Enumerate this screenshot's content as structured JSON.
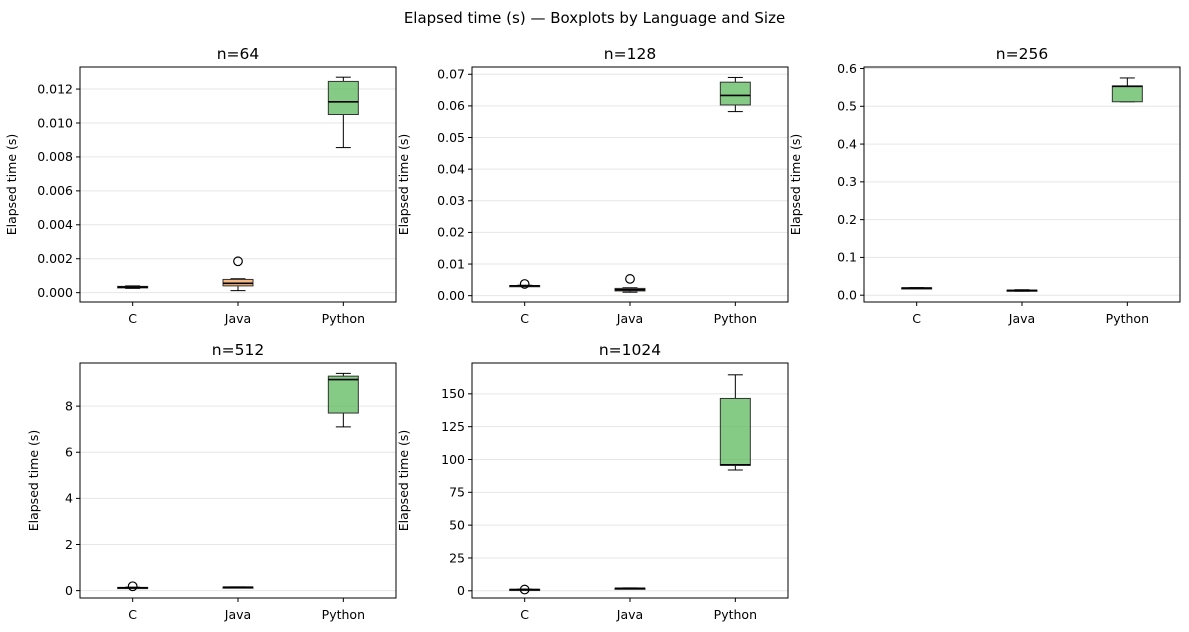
{
  "figure": {
    "title": "Elapsed time (s) — Boxplots by Language and Size"
  },
  "colors": {
    "C": "#4c72b0",
    "Java": "#f5a05a",
    "Python": "#5cb85c",
    "grid": "#e6e6e6",
    "median": "#000000"
  },
  "chart_data": [
    {
      "type": "box",
      "title": "n=64",
      "xlabel": "",
      "ylabel": "Elapsed time (s)",
      "categories": [
        "C",
        "Java",
        "Python"
      ],
      "ylim": [
        -0.00055,
        0.0133
      ],
      "yticks": [
        0.0,
        0.002,
        0.004,
        0.006,
        0.008,
        0.01,
        0.012
      ],
      "yticklabels": [
        "0.000",
        "0.002",
        "0.004",
        "0.006",
        "0.008",
        "0.010",
        "0.012"
      ],
      "grid": "y",
      "boxes": [
        {
          "name": "C",
          "whislo": 0.00025,
          "q1": 0.00028,
          "med": 0.00033,
          "q3": 0.00037,
          "whishi": 0.0004,
          "fliers": []
        },
        {
          "name": "Java",
          "whislo": 0.00012,
          "q1": 0.0004,
          "med": 0.00055,
          "q3": 0.00078,
          "whishi": 0.00082,
          "fliers": [
            0.00185
          ]
        },
        {
          "name": "Python",
          "whislo": 0.00855,
          "q1": 0.0105,
          "med": 0.01125,
          "q3": 0.01245,
          "whishi": 0.0127,
          "fliers": []
        }
      ]
    },
    {
      "type": "box",
      "title": "n=128",
      "xlabel": "",
      "ylabel": "Elapsed time (s)",
      "categories": [
        "C",
        "Java",
        "Python"
      ],
      "ylim": [
        -0.002,
        0.0723
      ],
      "yticks": [
        0.0,
        0.01,
        0.02,
        0.03,
        0.04,
        0.05,
        0.06,
        0.07
      ],
      "yticklabels": [
        "0.00",
        "0.01",
        "0.02",
        "0.03",
        "0.04",
        "0.05",
        "0.06",
        "0.07"
      ],
      "grid": "y",
      "boxes": [
        {
          "name": "C",
          "whislo": 0.0029,
          "q1": 0.003,
          "med": 0.0031,
          "q3": 0.0032,
          "whishi": 0.0033,
          "fliers": [
            0.0037
          ]
        },
        {
          "name": "Java",
          "whislo": 0.0011,
          "q1": 0.0015,
          "med": 0.0019,
          "q3": 0.0023,
          "whishi": 0.0025,
          "fliers": [
            0.0053
          ]
        },
        {
          "name": "Python",
          "whislo": 0.0582,
          "q1": 0.0603,
          "med": 0.0633,
          "q3": 0.0675,
          "whishi": 0.069,
          "fliers": []
        }
      ]
    },
    {
      "type": "box",
      "title": "n=256",
      "xlabel": "",
      "ylabel": "Elapsed time (s)",
      "categories": [
        "C",
        "Java",
        "Python"
      ],
      "ylim": [
        -0.018,
        0.604
      ],
      "yticks": [
        0.0,
        0.1,
        0.2,
        0.3,
        0.4,
        0.5,
        0.6
      ],
      "yticklabels": [
        "0.0",
        "0.1",
        "0.2",
        "0.3",
        "0.4",
        "0.5",
        "0.6"
      ],
      "grid": "y",
      "boxes": [
        {
          "name": "C",
          "whislo": 0.0175,
          "q1": 0.0182,
          "med": 0.0188,
          "q3": 0.0195,
          "whishi": 0.02,
          "fliers": []
        },
        {
          "name": "Java",
          "whislo": 0.0105,
          "q1": 0.0115,
          "med": 0.0125,
          "q3": 0.0135,
          "whishi": 0.0145,
          "fliers": []
        },
        {
          "name": "Python",
          "whislo": 0.512,
          "q1": 0.512,
          "med": 0.553,
          "q3": 0.554,
          "whishi": 0.575,
          "fliers": []
        }
      ]
    },
    {
      "type": "box",
      "title": "n=512",
      "xlabel": "",
      "ylabel": "Elapsed time (s)",
      "categories": [
        "C",
        "Java",
        "Python"
      ],
      "ylim": [
        -0.32,
        9.87
      ],
      "yticks": [
        0,
        2,
        4,
        6,
        8
      ],
      "yticklabels": [
        "0",
        "2",
        "4",
        "6",
        "8"
      ],
      "grid": "y",
      "boxes": [
        {
          "name": "C",
          "whislo": 0.1,
          "q1": 0.11,
          "med": 0.125,
          "q3": 0.14,
          "whishi": 0.15,
          "fliers": [
            0.19
          ]
        },
        {
          "name": "Java",
          "whislo": 0.14,
          "q1": 0.145,
          "med": 0.15,
          "q3": 0.155,
          "whishi": 0.16,
          "fliers": []
        },
        {
          "name": "Python",
          "whislo": 7.1,
          "q1": 7.7,
          "med": 9.15,
          "q3": 9.3,
          "whishi": 9.42,
          "fliers": []
        }
      ]
    },
    {
      "type": "box",
      "title": "n=1024",
      "xlabel": "",
      "ylabel": "Elapsed time (s)",
      "categories": [
        "C",
        "Java",
        "Python"
      ],
      "ylim": [
        -5.5,
        173.5
      ],
      "yticks": [
        0,
        25,
        50,
        75,
        100,
        125,
        150
      ],
      "yticklabels": [
        "0",
        "25",
        "50",
        "75",
        "100",
        "125",
        "150"
      ],
      "grid": "y",
      "boxes": [
        {
          "name": "C",
          "whislo": 0.6,
          "q1": 0.8,
          "med": 0.95,
          "q3": 1.1,
          "whishi": 1.3,
          "fliers": [
            0.95
          ]
        },
        {
          "name": "Java",
          "whislo": 1.6,
          "q1": 1.8,
          "med": 1.9,
          "q3": 2.0,
          "whishi": 2.2,
          "fliers": []
        },
        {
          "name": "Python",
          "whislo": 92,
          "q1": 95.5,
          "med": 96,
          "q3": 146.5,
          "whishi": 164.5,
          "fliers": []
        }
      ]
    }
  ]
}
